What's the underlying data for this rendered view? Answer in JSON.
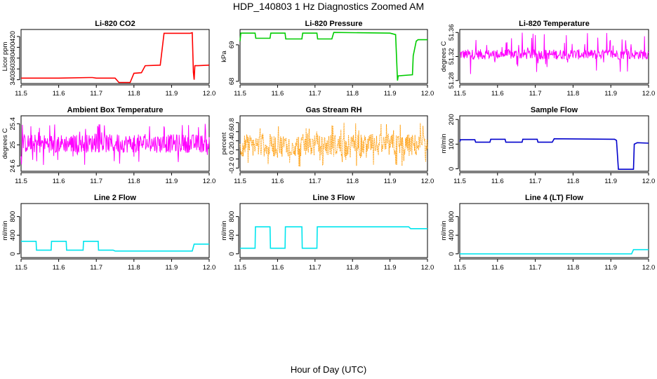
{
  "figure": {
    "title": "HDP_140803  1 Hz Diagnostics Zoomed AM",
    "xlabel": "Hour of Day (UTC)"
  },
  "chart_data": [
    {
      "type": "line",
      "title": "Li-820 CO2",
      "ylabel": "Licor ppm",
      "color": "#ff0000",
      "xlim": [
        11.5,
        12.0
      ],
      "ylim": [
        333,
        433
      ],
      "xticks": [
        "11.5",
        "11.6",
        "11.7",
        "11.8",
        "11.9",
        "12.0"
      ],
      "yticks": [
        340,
        360,
        380,
        400,
        420
      ],
      "x": [
        11.5,
        11.6,
        11.68,
        11.69,
        11.7,
        11.75,
        11.76,
        11.79,
        11.8,
        11.82,
        11.83,
        11.87,
        11.88,
        11.95,
        11.955,
        11.958,
        11.96,
        11.962,
        11.97,
        12.0
      ],
      "y": [
        343,
        343,
        344,
        344,
        343,
        343,
        335,
        335,
        352,
        353,
        366,
        367,
        426,
        426,
        427,
        354,
        340,
        366,
        366,
        367
      ]
    },
    {
      "type": "line",
      "title": "Li-820 Pressure",
      "ylabel": "kPa",
      "color": "#00cc00",
      "xlim": [
        11.5,
        12.0
      ],
      "ylim": [
        67.94,
        69.42
      ],
      "xticks": [
        "11.5",
        "11.6",
        "11.7",
        "11.8",
        "11.9",
        "12.0"
      ],
      "yticks": [
        68.0,
        69.0
      ],
      "x": [
        11.5,
        11.502,
        11.54,
        11.542,
        11.58,
        11.582,
        11.62,
        11.622,
        11.665,
        11.667,
        11.705,
        11.707,
        11.745,
        11.75,
        11.9,
        11.915,
        11.92,
        11.922,
        11.96,
        11.962,
        11.97,
        11.975,
        12.0
      ],
      "y": [
        69.1,
        69.32,
        69.32,
        69.18,
        69.18,
        69.32,
        69.32,
        69.16,
        69.16,
        69.32,
        69.32,
        69.16,
        69.16,
        69.34,
        69.32,
        69.28,
        68.02,
        68.15,
        68.18,
        68.7,
        69.1,
        69.14,
        69.14
      ]
    },
    {
      "type": "line",
      "title": "Li-820 Temperature",
      "ylabel": "degrees C",
      "color": "#ff00ff",
      "xlim": [
        11.5,
        12.0
      ],
      "ylim": [
        51.275,
        51.365
      ],
      "xticks": [
        "11.5",
        "11.6",
        "11.7",
        "11.8",
        "11.9",
        "12.0"
      ],
      "yticks": [
        51.28,
        51.32,
        51.36
      ],
      "band": [
        51.315,
        51.332
      ],
      "series_description": "1 Hz noise between 51.315 and 51.332 with frequent spikes to 51.36 and 51.28"
    },
    {
      "type": "line",
      "title": "Ambient Box Temperature",
      "ylabel": "degrees C",
      "color": "#ff00ff",
      "xlim": [
        11.5,
        12.0
      ],
      "ylim": [
        24.5,
        25.55
      ],
      "xticks": [
        "11.5",
        "11.6",
        "11.7",
        "11.8",
        "11.9",
        "12.0"
      ],
      "yticks": [
        24.6,
        25.0,
        25.4
      ],
      "band": [
        24.85,
        25.2
      ],
      "series_description": "noise around 25.0 ranging 24.6 to 25.5"
    },
    {
      "type": "line",
      "title": "Gas Stream RH",
      "ylabel": "percent",
      "color": "#ff9900",
      "xlim": [
        11.5,
        12.0
      ],
      "ylim": [
        -0.27,
        0.95
      ],
      "xticks": [
        "11.5",
        "11.6",
        "11.7",
        "11.8",
        "11.9",
        "12.0"
      ],
      "yticks": [
        -0.2,
        0.0,
        0.2,
        0.4,
        0.6,
        0.8
      ],
      "band": [
        0.05,
        0.55
      ],
      "series_description": "noise between -0.2 and 0.8, mean about 0.25"
    },
    {
      "type": "line",
      "title": "Sample Flow",
      "ylabel": "ml/min",
      "color": "#0000cc",
      "xlim": [
        11.5,
        12.0
      ],
      "ylim": [
        -10,
        215
      ],
      "xticks": [
        "11.5",
        "11.6",
        "11.7",
        "11.8",
        "11.9",
        "12.0"
      ],
      "yticks": [
        0,
        100,
        200
      ],
      "x": [
        11.5,
        11.502,
        11.54,
        11.542,
        11.58,
        11.582,
        11.62,
        11.622,
        11.665,
        11.667,
        11.705,
        11.707,
        11.745,
        11.75,
        11.91,
        11.915,
        11.92,
        11.96,
        11.962,
        11.97,
        12.0
      ],
      "y": [
        110,
        118,
        118,
        108,
        108,
        120,
        120,
        108,
        108,
        120,
        120,
        108,
        108,
        122,
        120,
        115,
        -2,
        -2,
        100,
        106,
        104
      ]
    },
    {
      "type": "line",
      "title": "Line 2 Flow",
      "ylabel": "ml/min",
      "color": "#00e5ee",
      "xlim": [
        11.5,
        12.0
      ],
      "ylim": [
        -80,
        1080
      ],
      "xticks": [
        "11.5",
        "11.6",
        "11.7",
        "11.8",
        "11.9",
        "12.0"
      ],
      "yticks": [
        0,
        400,
        800
      ],
      "x": [
        11.5,
        11.54,
        11.541,
        11.58,
        11.581,
        11.62,
        11.621,
        11.665,
        11.666,
        11.705,
        11.706,
        11.745,
        11.75,
        11.955,
        11.96,
        12.0
      ],
      "y": [
        270,
        270,
        80,
        80,
        270,
        270,
        80,
        80,
        270,
        270,
        80,
        80,
        60,
        60,
        210,
        210
      ]
    },
    {
      "type": "line",
      "title": "Line 3 Flow",
      "ylabel": "ml/min",
      "color": "#00e5ee",
      "xlim": [
        11.5,
        12.0
      ],
      "ylim": [
        -80,
        1080
      ],
      "xticks": [
        "11.5",
        "11.6",
        "11.7",
        "11.8",
        "11.9",
        "12.0"
      ],
      "yticks": [
        0,
        400,
        800
      ],
      "x": [
        11.5,
        11.54,
        11.541,
        11.58,
        11.581,
        11.62,
        11.621,
        11.665,
        11.666,
        11.705,
        11.706,
        11.95,
        11.955,
        12.0
      ],
      "y": [
        120,
        120,
        580,
        580,
        120,
        120,
        580,
        580,
        120,
        120,
        580,
        580,
        540,
        540
      ]
    },
    {
      "type": "line",
      "title": "Line 4 (LT) Flow",
      "ylabel": "ml/min",
      "color": "#00e5ee",
      "xlim": [
        11.5,
        12.0
      ],
      "ylim": [
        -80,
        1080
      ],
      "xticks": [
        "11.5",
        "11.6",
        "11.7",
        "11.8",
        "11.9",
        "12.0"
      ],
      "yticks": [
        0,
        400,
        800
      ],
      "x": [
        11.5,
        11.955,
        11.96,
        12.0
      ],
      "y": [
        0,
        0,
        90,
        90
      ]
    }
  ]
}
